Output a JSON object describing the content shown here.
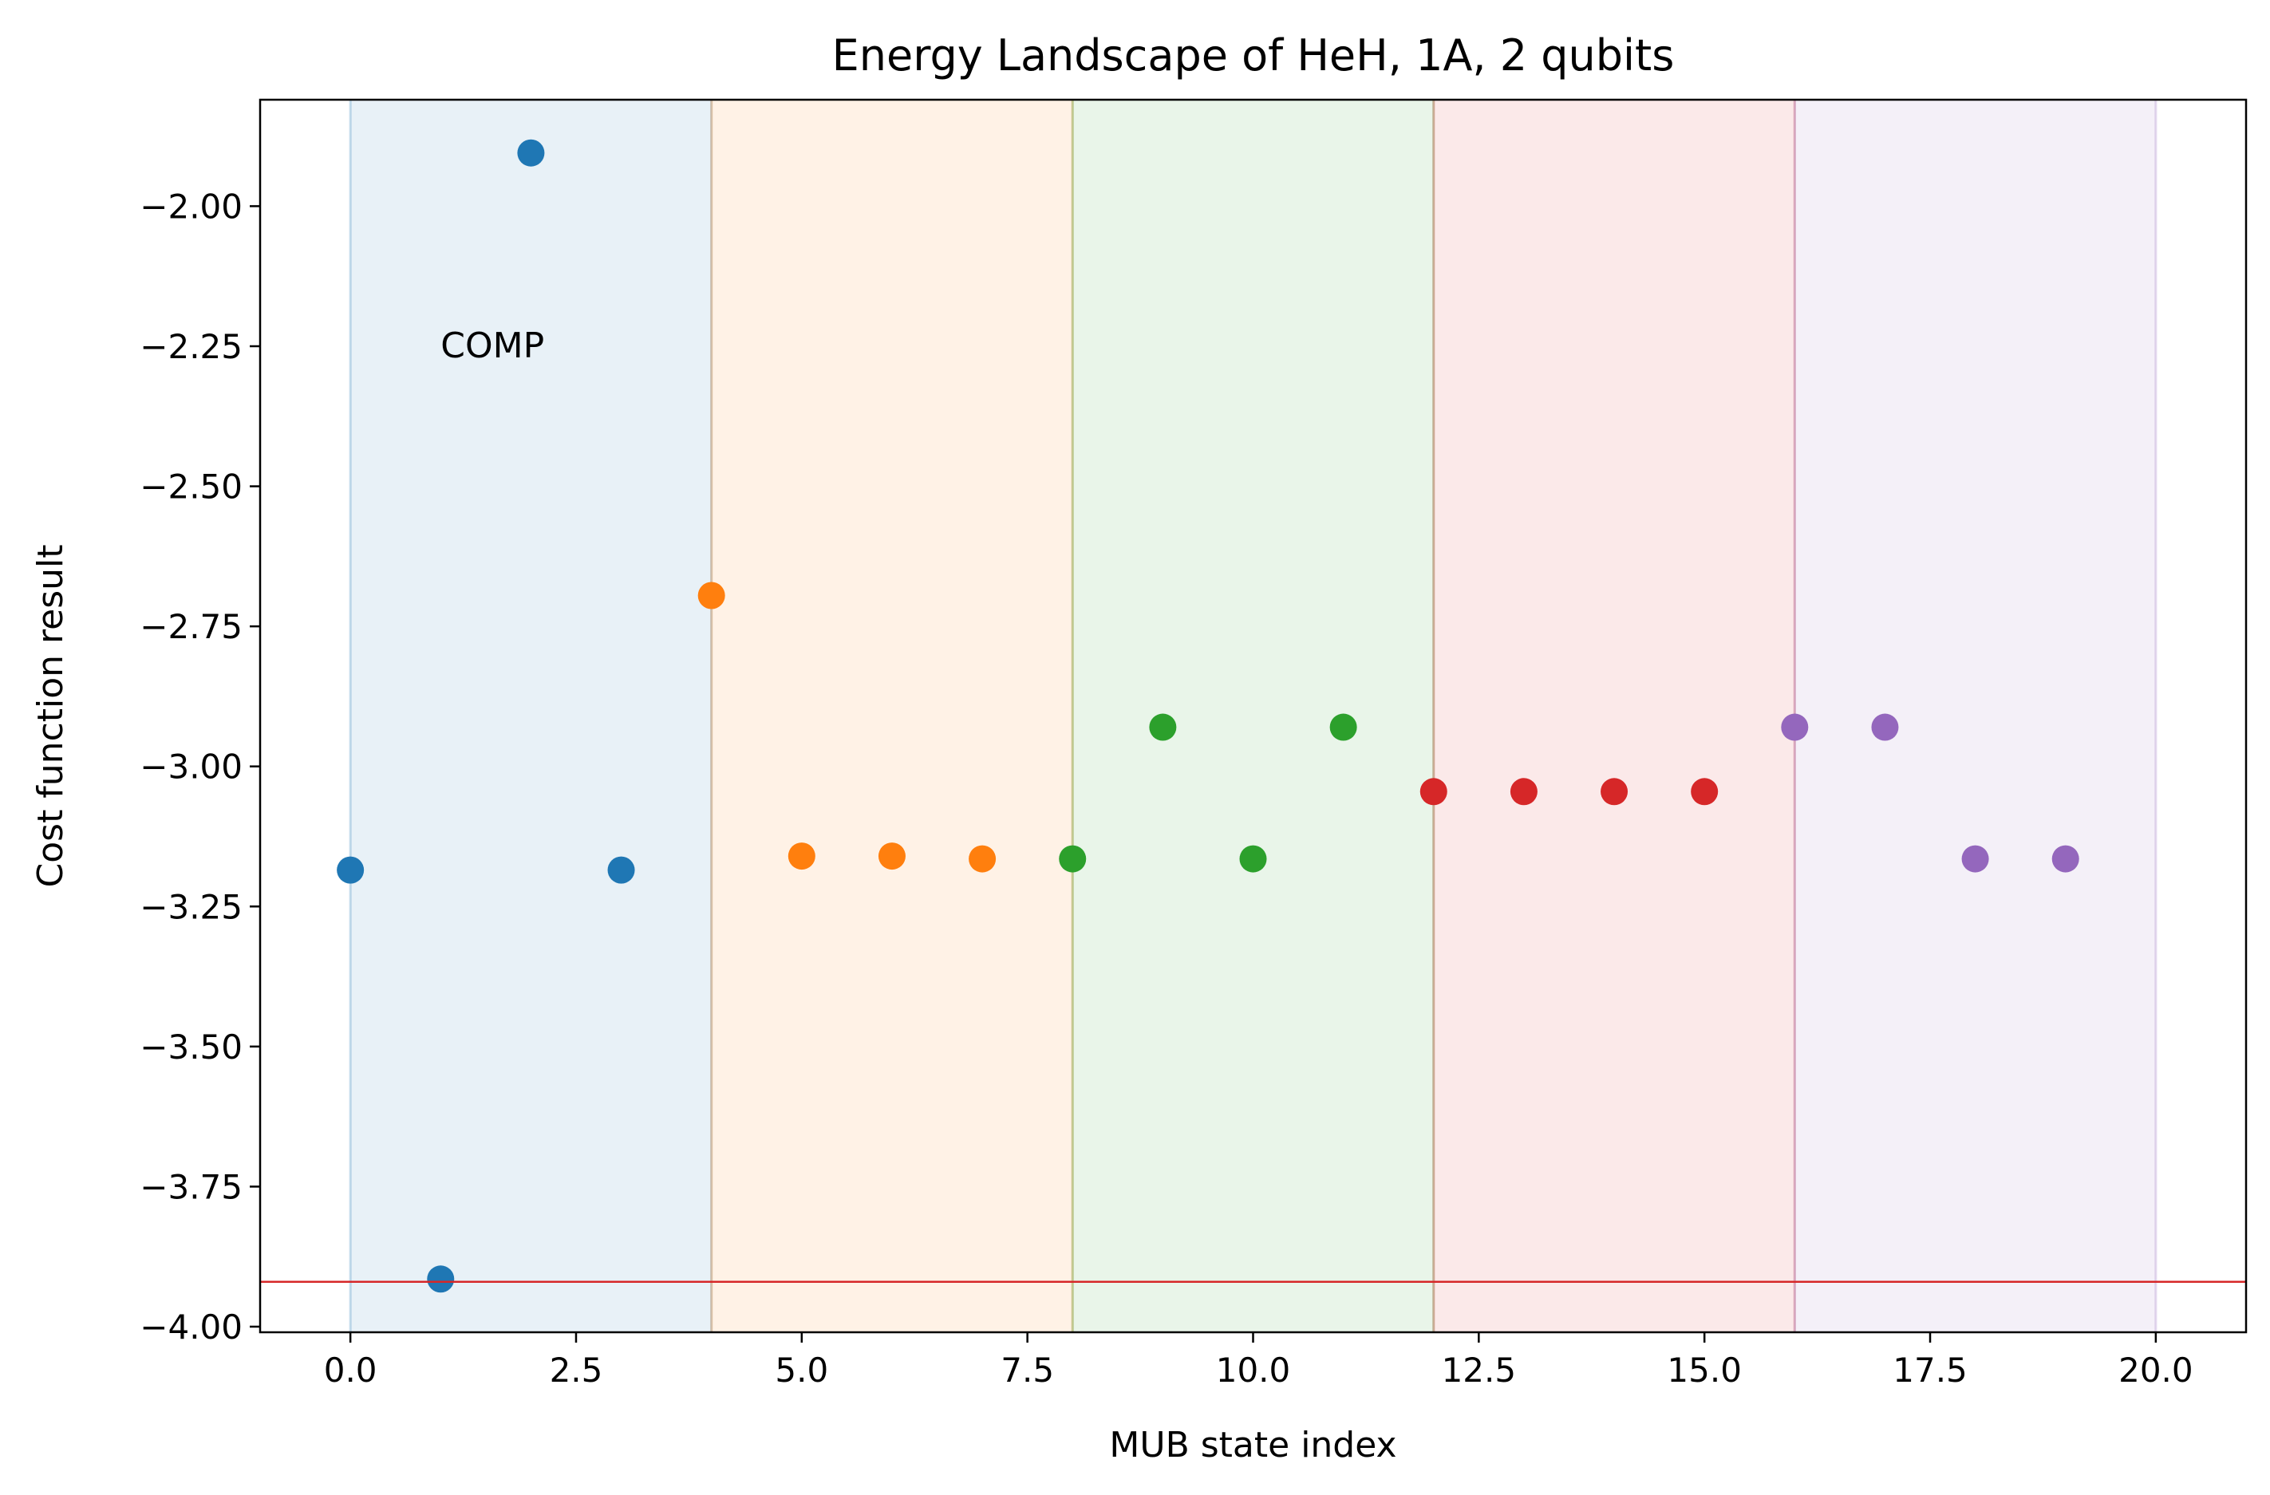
{
  "chart_data": {
    "type": "scatter",
    "title": "Energy Landscape of HeH, 1A, 2 qubits",
    "xlabel": "MUB state index",
    "ylabel": "Cost function result",
    "xlim": [
      -1,
      21
    ],
    "ylim": [
      -4.01,
      -1.81
    ],
    "xticks": [
      0.0,
      2.5,
      5.0,
      7.5,
      10.0,
      12.5,
      15.0,
      17.5,
      20.0
    ],
    "xtick_labels": [
      "0.0",
      "2.5",
      "5.0",
      "7.5",
      "10.0",
      "12.5",
      "15.0",
      "17.5",
      "20.0"
    ],
    "yticks": [
      -2.0,
      -2.25,
      -2.5,
      -2.75,
      -3.0,
      -3.25,
      -3.5,
      -3.75,
      -4.0
    ],
    "ytick_labels": [
      "−2.00",
      "−2.25",
      "−2.50",
      "−2.75",
      "−3.00",
      "−3.25",
      "−3.50",
      "−3.75",
      "−4.00"
    ],
    "grid": false,
    "annotations": [
      {
        "text": "COMP",
        "x": 1.0,
        "y": -2.25
      }
    ],
    "reference_line": {
      "y": -3.92,
      "color": "#d62728"
    },
    "bands": [
      {
        "x0": 0,
        "x1": 4,
        "color": "#1f77b4"
      },
      {
        "x0": 4,
        "x1": 8,
        "color": "#ff7f0e"
      },
      {
        "x0": 8,
        "x1": 12,
        "color": "#2ca02c"
      },
      {
        "x0": 12,
        "x1": 16,
        "color": "#d62728"
      },
      {
        "x0": 16,
        "x1": 20,
        "color": "#9467bd"
      }
    ],
    "series": [
      {
        "color": "#1f77b4",
        "x": [
          0,
          1,
          2,
          3
        ],
        "y": [
          -3.185,
          -3.915,
          -1.905,
          -3.185
        ]
      },
      {
        "color": "#ff7f0e",
        "x": [
          4,
          5,
          6,
          7
        ],
        "y": [
          -2.695,
          -3.16,
          -3.16,
          -3.165
        ]
      },
      {
        "color": "#2ca02c",
        "x": [
          8,
          9,
          10,
          11
        ],
        "y": [
          -3.165,
          -2.93,
          -3.165,
          -2.93
        ]
      },
      {
        "color": "#d62728",
        "x": [
          12,
          13,
          14,
          15
        ],
        "y": [
          -3.045,
          -3.045,
          -3.045,
          -3.045
        ]
      },
      {
        "color": "#9467bd",
        "x": [
          16,
          17,
          18,
          19
        ],
        "y": [
          -2.93,
          -2.93,
          -3.165,
          -3.165
        ]
      }
    ]
  }
}
